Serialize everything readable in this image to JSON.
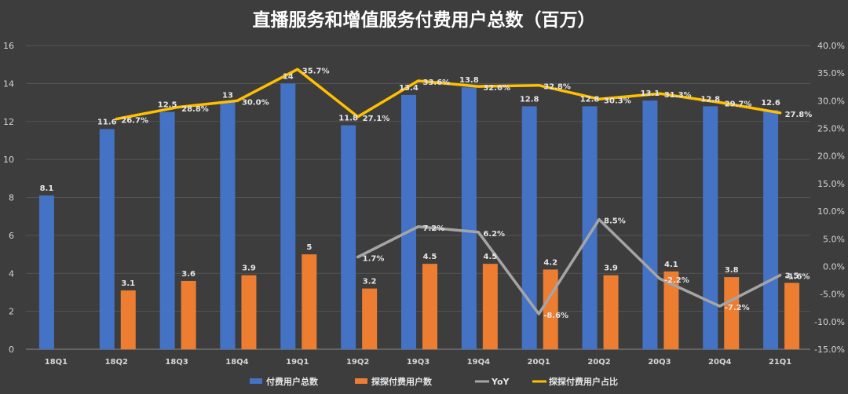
{
  "chart_data": {
    "type": "bar",
    "title": "直播服务和增值服务付费用户总数（百万）",
    "categories": [
      "18Q1",
      "18Q2",
      "18Q3",
      "18Q4",
      "19Q1",
      "19Q2",
      "19Q3",
      "19Q4",
      "20Q1",
      "20Q2",
      "20Q3",
      "20Q4",
      "21Q1"
    ],
    "series": [
      {
        "name": "付费用户总数",
        "axis": "left",
        "kind": "bar",
        "color": "#4472C4",
        "values": [
          8.1,
          11.6,
          12.5,
          13,
          14,
          11.8,
          13.4,
          13.8,
          12.8,
          12.8,
          13.1,
          12.8,
          12.6
        ],
        "labels": [
          "8.1",
          "11.6",
          "12.5",
          "13",
          "14",
          "11.8",
          "13.4",
          "13.8",
          "12.8",
          "12.8",
          "13.1",
          "12.8",
          "12.6"
        ]
      },
      {
        "name": "探探付费用户数",
        "axis": "left",
        "kind": "bar",
        "color": "#ED7D31",
        "values": [
          null,
          3.1,
          3.6,
          3.9,
          5,
          3.2,
          4.5,
          4.5,
          4.2,
          3.9,
          4.1,
          3.8,
          3.5
        ],
        "labels": [
          "",
          "3.1",
          "3.6",
          "3.9",
          "5",
          "3.2",
          "4.5",
          "4.5",
          "4.2",
          "3.9",
          "4.1",
          "3.8",
          "3.5"
        ]
      },
      {
        "name": "YoY",
        "axis": "right",
        "kind": "line",
        "color": "#A5A5A5",
        "values": [
          null,
          null,
          null,
          null,
          null,
          1.7,
          7.2,
          6.2,
          -8.6,
          8.5,
          -2.2,
          -7.2,
          -1.6
        ],
        "labels": [
          "",
          "",
          "",
          "",
          "",
          "1.7%",
          "7.2%",
          "6.2%",
          "-8.6%",
          "8.5%",
          "-2.2%",
          "-7.2%",
          "-1.6%"
        ]
      },
      {
        "name": "探探付费用户占比",
        "axis": "right",
        "kind": "line",
        "color": "#FFC000",
        "values": [
          null,
          26.7,
          28.8,
          30.0,
          35.7,
          27.1,
          33.6,
          32.6,
          32.8,
          30.3,
          31.3,
          29.7,
          27.8
        ],
        "labels": [
          "",
          "26.7%",
          "28.8%",
          "30.0%",
          "35.7%",
          "27.1%",
          "33.6%",
          "32.6%",
          "32.8%",
          "30.3%",
          "31.3%",
          "29.7%",
          "27.8%"
        ]
      }
    ],
    "ylim_left": [
      0,
      16
    ],
    "yticks_left": [
      "0",
      "2",
      "4",
      "6",
      "8",
      "10",
      "12",
      "14",
      "16"
    ],
    "ylim_right": [
      -15,
      40
    ],
    "yticks_right": [
      "-15.0%",
      "-10.0%",
      "-5.0%",
      "0.0%",
      "5.0%",
      "10.0%",
      "15.0%",
      "20.0%",
      "25.0%",
      "30.0%",
      "35.0%",
      "40.0%"
    ],
    "grid": true,
    "legend": "bottom"
  }
}
